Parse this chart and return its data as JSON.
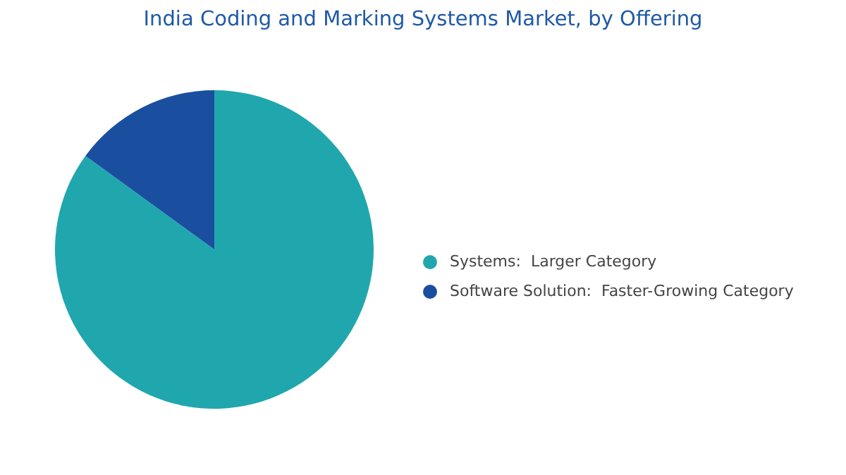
{
  "chart_data": {
    "type": "pie",
    "title": "India Coding and Marking Systems Market, by Offering",
    "categories": [
      "Systems:  Larger Category",
      "Software Solution:  Faster-Growing Category"
    ],
    "values": [
      85,
      15
    ],
    "colors": [
      "#20a7ae",
      "#1a4fa0"
    ],
    "legend": "right"
  }
}
